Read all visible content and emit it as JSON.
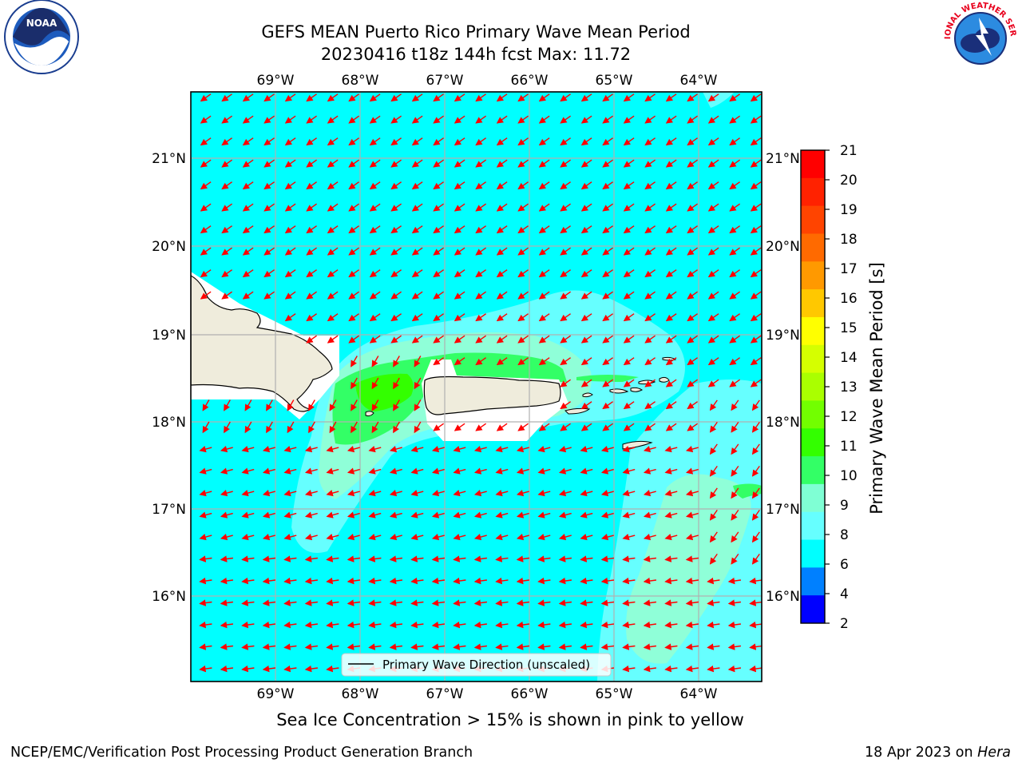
{
  "title": {
    "line1": "GEFS MEAN Puerto Rico Primary Wave Mean Period",
    "line2": "20230416 t18z 144h fcst   Max: 11.72"
  },
  "logos": {
    "left": {
      "icon": "noaa-logo",
      "text": "NOAA"
    },
    "right": {
      "icon": "national-weather-service-logo",
      "text": "NATIONAL WEATHER SERVICE"
    }
  },
  "map": {
    "lon_labels": [
      "69°W",
      "68°W",
      "67°W",
      "66°W",
      "65°W",
      "64°W"
    ],
    "lat_labels": [
      "21°N",
      "20°N",
      "19°N",
      "18°N",
      "17°N",
      "16°N"
    ],
    "legend": "Primary Wave Direction (unscaled)",
    "arrow_color": "#ff0000",
    "ocean_color": "#00ffff",
    "land_color": "#efecdc"
  },
  "colorbar": {
    "label": "Primary Wave Mean Period [s]",
    "ticks": [
      "21",
      "20",
      "19",
      "18",
      "17",
      "16",
      "15",
      "14",
      "13",
      "12",
      "11",
      "10",
      "9",
      "8",
      "6",
      "4",
      "2"
    ],
    "colors": [
      "#ff0000",
      "#ff2200",
      "#ff4400",
      "#ff6a00",
      "#ff9900",
      "#ffc800",
      "#ffff00",
      "#d5ff00",
      "#aaff00",
      "#72ff00",
      "#33ff00",
      "#33ff66",
      "#7fffd4",
      "#66ffff",
      "#00ffff",
      "#0080ff",
      "#0000ff"
    ]
  },
  "chart_data": {
    "type": "heatmap",
    "title": "GEFS MEAN Puerto Rico Primary Wave Mean Period",
    "subtitle": "20230416 t18z 144h fcst   Max: 11.72",
    "variable": "Primary Wave Mean Period [s]",
    "max": 11.72,
    "lon_range": [
      -70,
      -63.25
    ],
    "lat_range": [
      15.05,
      21.75
    ],
    "color_levels": [
      2,
      4,
      6,
      8,
      9,
      10,
      11,
      12,
      13,
      14,
      15,
      16,
      17,
      18,
      19,
      20,
      21
    ],
    "predominant_period": "6-8",
    "direction_field": "Primary Wave Direction (unscaled)"
  },
  "caption": "Sea Ice Concentration > 15% is shown in pink to yellow",
  "footer": {
    "left": "NCEP/EMC/Verification Post Processing Product Generation Branch",
    "date": "18 Apr 2023 on ",
    "host": "Hera"
  }
}
